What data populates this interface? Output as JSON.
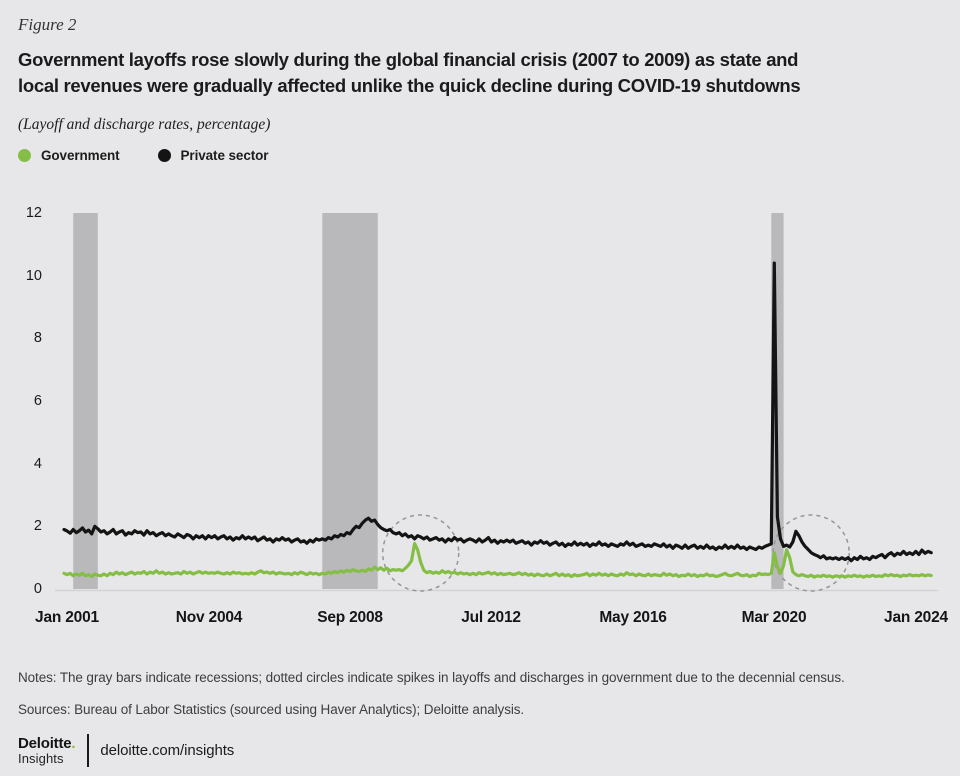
{
  "figure_label": "Figure 2",
  "title_lines": [
    "Government layoffs rose slowly during the global financial crisis (2007 to 2009) as state and",
    "local revenues were gradually affected unlike the quick decline during COVID-19 shutdowns"
  ],
  "subtitle": "(Layoff and discharge rates, percentage)",
  "legend": {
    "items": [
      {
        "label": "Government",
        "color": "#85BE44"
      },
      {
        "label": "Private sector",
        "color": "#141414"
      }
    ]
  },
  "notes": "Notes: The gray bars indicate recessions; dotted circles indicate spikes in layoffs and discharges in government due to the decennial census.",
  "sources": "Sources: Bureau of Labor Statistics (sourced using Haver Analytics); Deloitte analysis.",
  "footer": {
    "brand": "Deloitte",
    "brand_period": ".",
    "brand_sub": "Insights",
    "link": "deloitte.com/insights"
  },
  "colors": {
    "background": "#E7E7E9",
    "recession_band": "#B9B9BB",
    "baseline": "#D3D3D5",
    "census_circle": "#96969A",
    "brand_green": "#86BC25"
  },
  "chart_data": {
    "type": "line",
    "title": "Layoff and discharge rates, percentage",
    "ylabel": "Layoff and discharge rate (%)",
    "ylim": [
      0,
      12
    ],
    "y_ticks": [
      0,
      2,
      4,
      6,
      8,
      10,
      12
    ],
    "grid": false,
    "legend_position": "top-left",
    "x_unit": "month",
    "x_ticks": [
      {
        "label": "Jan 2001",
        "month_index": 1
      },
      {
        "label": "Nov 2004",
        "month_index": 47
      },
      {
        "label": "Sep 2008",
        "month_index": 93
      },
      {
        "label": "Jul 2012",
        "month_index": 139
      },
      {
        "label": "May 2016",
        "month_index": 185
      },
      {
        "label": "Mar 2020",
        "month_index": 231
      },
      {
        "label": "Jan 2024",
        "month_index": 277
      }
    ],
    "recessions": [
      {
        "name": "2001 recession",
        "start_month": 3,
        "end_month": 11
      },
      {
        "name": "Global financial crisis 2007 to 2009",
        "start_month": 84,
        "end_month": 102
      },
      {
        "name": "COVID-19 recession",
        "start_month": 230,
        "end_month": 234
      }
    ],
    "census_circles": [
      {
        "label": "2010 decennial census spike",
        "center_month": 116
      },
      {
        "label": "2020 decennial census spike",
        "center_month": 243
      }
    ],
    "series": [
      {
        "name": "Government",
        "color": "#85BE44",
        "monthly_values": [
          0.5,
          0.46,
          0.5,
          0.42,
          0.48,
          0.44,
          0.5,
          0.42,
          0.46,
          0.4,
          0.48,
          0.44,
          0.42,
          0.48,
          0.42,
          0.5,
          0.46,
          0.54,
          0.48,
          0.52,
          0.46,
          0.5,
          0.54,
          0.48,
          0.52,
          0.5,
          0.56,
          0.48,
          0.54,
          0.5,
          0.58,
          0.5,
          0.54,
          0.48,
          0.52,
          0.48,
          0.5,
          0.52,
          0.48,
          0.56,
          0.5,
          0.54,
          0.48,
          0.52,
          0.56,
          0.5,
          0.54,
          0.5,
          0.52,
          0.5,
          0.54,
          0.5,
          0.48,
          0.52,
          0.48,
          0.54,
          0.5,
          0.52,
          0.48,
          0.5,
          0.48,
          0.52,
          0.48,
          0.54,
          0.58,
          0.52,
          0.54,
          0.5,
          0.54,
          0.48,
          0.52,
          0.5,
          0.48,
          0.5,
          0.46,
          0.52,
          0.48,
          0.54,
          0.5,
          0.46,
          0.52,
          0.48,
          0.5,
          0.46,
          0.5,
          0.48,
          0.54,
          0.5,
          0.56,
          0.52,
          0.58,
          0.54,
          0.6,
          0.56,
          0.62,
          0.58,
          0.56,
          0.6,
          0.56,
          0.64,
          0.6,
          0.7,
          0.62,
          0.68,
          0.6,
          0.66,
          0.58,
          0.62,
          0.6,
          0.62,
          0.58,
          0.66,
          0.76,
          0.9,
          1.45,
          1.25,
          0.85,
          0.6,
          0.52,
          0.56,
          0.5,
          0.54,
          0.5,
          0.58,
          0.52,
          0.56,
          0.5,
          0.54,
          0.48,
          0.52,
          0.48,
          0.5,
          0.46,
          0.5,
          0.46,
          0.52,
          0.48,
          0.5,
          0.54,
          0.48,
          0.52,
          0.46,
          0.5,
          0.46,
          0.48,
          0.5,
          0.46,
          0.48,
          0.52,
          0.46,
          0.5,
          0.44,
          0.48,
          0.42,
          0.48,
          0.44,
          0.42,
          0.48,
          0.42,
          0.46,
          0.5,
          0.42,
          0.48,
          0.42,
          0.46,
          0.4,
          0.46,
          0.42,
          0.44,
          0.46,
          0.5,
          0.42,
          0.48,
          0.44,
          0.5,
          0.44,
          0.48,
          0.42,
          0.48,
          0.44,
          0.42,
          0.48,
          0.44,
          0.52,
          0.46,
          0.48,
          0.42,
          0.48,
          0.44,
          0.42,
          0.48,
          0.42,
          0.46,
          0.44,
          0.42,
          0.5,
          0.44,
          0.48,
          0.42,
          0.46,
          0.4,
          0.44,
          0.42,
          0.48,
          0.42,
          0.46,
          0.4,
          0.44,
          0.42,
          0.48,
          0.42,
          0.44,
          0.4,
          0.42,
          0.46,
          0.5,
          0.44,
          0.42,
          0.46,
          0.5,
          0.44,
          0.42,
          0.46,
          0.4,
          0.44,
          0.42,
          0.5,
          0.46,
          0.48,
          0.46,
          0.5,
          1.15,
          0.7,
          0.5,
          0.75,
          1.25,
          1.0,
          0.55,
          0.46,
          0.42,
          0.46,
          0.42,
          0.4,
          0.44,
          0.38,
          0.42,
          0.4,
          0.44,
          0.4,
          0.42,
          0.38,
          0.42,
          0.4,
          0.42,
          0.38,
          0.42,
          0.4,
          0.44,
          0.4,
          0.42,
          0.38,
          0.42,
          0.4,
          0.44,
          0.4,
          0.42,
          0.4,
          0.46,
          0.42,
          0.46,
          0.42,
          0.44,
          0.4,
          0.44,
          0.42,
          0.46,
          0.42,
          0.44,
          0.42,
          0.46,
          0.42,
          0.45,
          0.43
        ]
      },
      {
        "name": "Private sector",
        "color": "#141414",
        "monthly_values": [
          1.9,
          1.85,
          1.78,
          1.9,
          1.8,
          1.86,
          1.95,
          1.82,
          1.88,
          1.76,
          2.0,
          1.92,
          1.82,
          1.86,
          1.76,
          1.82,
          1.9,
          1.76,
          1.82,
          1.86,
          1.72,
          1.8,
          1.76,
          1.86,
          1.8,
          1.82,
          1.72,
          1.86,
          1.76,
          1.8,
          1.7,
          1.76,
          1.8,
          1.7,
          1.76,
          1.7,
          1.66,
          1.76,
          1.7,
          1.64,
          1.74,
          1.7,
          1.6,
          1.7,
          1.64,
          1.7,
          1.6,
          1.7,
          1.64,
          1.7,
          1.6,
          1.66,
          1.7,
          1.6,
          1.66,
          1.56,
          1.64,
          1.6,
          1.7,
          1.6,
          1.66,
          1.6,
          1.66,
          1.54,
          1.6,
          1.66,
          1.56,
          1.6,
          1.5,
          1.6,
          1.56,
          1.64,
          1.56,
          1.6,
          1.5,
          1.56,
          1.6,
          1.5,
          1.54,
          1.46,
          1.56,
          1.5,
          1.6,
          1.56,
          1.6,
          1.56,
          1.64,
          1.6,
          1.7,
          1.66,
          1.74,
          1.7,
          1.8,
          1.76,
          1.9,
          2.0,
          1.96,
          2.1,
          2.2,
          2.26,
          2.16,
          2.2,
          2.06,
          1.96,
          1.9,
          1.86,
          1.9,
          1.8,
          1.76,
          1.8,
          1.7,
          1.76,
          1.66,
          1.7,
          1.6,
          1.7,
          1.66,
          1.6,
          1.66,
          1.56,
          1.6,
          1.64,
          1.56,
          1.6,
          1.5,
          1.6,
          1.54,
          1.64,
          1.56,
          1.6,
          1.5,
          1.56,
          1.6,
          1.56,
          1.5,
          1.6,
          1.5,
          1.56,
          1.64,
          1.5,
          1.56,
          1.46,
          1.54,
          1.5,
          1.56,
          1.5,
          1.56,
          1.46,
          1.5,
          1.54,
          1.46,
          1.5,
          1.4,
          1.5,
          1.46,
          1.54,
          1.46,
          1.5,
          1.4,
          1.46,
          1.5,
          1.4,
          1.46,
          1.36,
          1.44,
          1.4,
          1.5,
          1.4,
          1.46,
          1.4,
          1.46,
          1.36,
          1.44,
          1.4,
          1.5,
          1.4,
          1.44,
          1.36,
          1.44,
          1.4,
          1.36,
          1.44,
          1.4,
          1.5,
          1.4,
          1.46,
          1.36,
          1.4,
          1.44,
          1.36,
          1.4,
          1.36,
          1.44,
          1.4,
          1.36,
          1.44,
          1.34,
          1.4,
          1.3,
          1.4,
          1.36,
          1.3,
          1.4,
          1.3,
          1.36,
          1.4,
          1.3,
          1.36,
          1.3,
          1.4,
          1.3,
          1.34,
          1.26,
          1.34,
          1.3,
          1.4,
          1.3,
          1.36,
          1.3,
          1.4,
          1.3,
          1.34,
          1.26,
          1.34,
          1.3,
          1.26,
          1.34,
          1.3,
          1.36,
          1.4,
          1.44,
          10.4,
          2.3,
          1.6,
          1.36,
          1.4,
          1.34,
          1.5,
          1.84,
          1.7,
          1.5,
          1.36,
          1.26,
          1.16,
          1.1,
          1.06,
          1.0,
          1.06,
          0.96,
          1.0,
          0.96,
          1.0,
          0.94,
          1.0,
          0.94,
          1.0,
          0.9,
          1.0,
          0.94,
          1.04,
          0.96,
          1.0,
          0.94,
          1.04,
          1.0,
          1.06,
          1.1,
          1.0,
          1.1,
          1.16,
          1.06,
          1.14,
          1.1,
          1.2,
          1.1,
          1.16,
          1.1,
          1.2,
          1.1,
          1.24,
          1.14,
          1.2,
          1.16
        ]
      }
    ]
  }
}
